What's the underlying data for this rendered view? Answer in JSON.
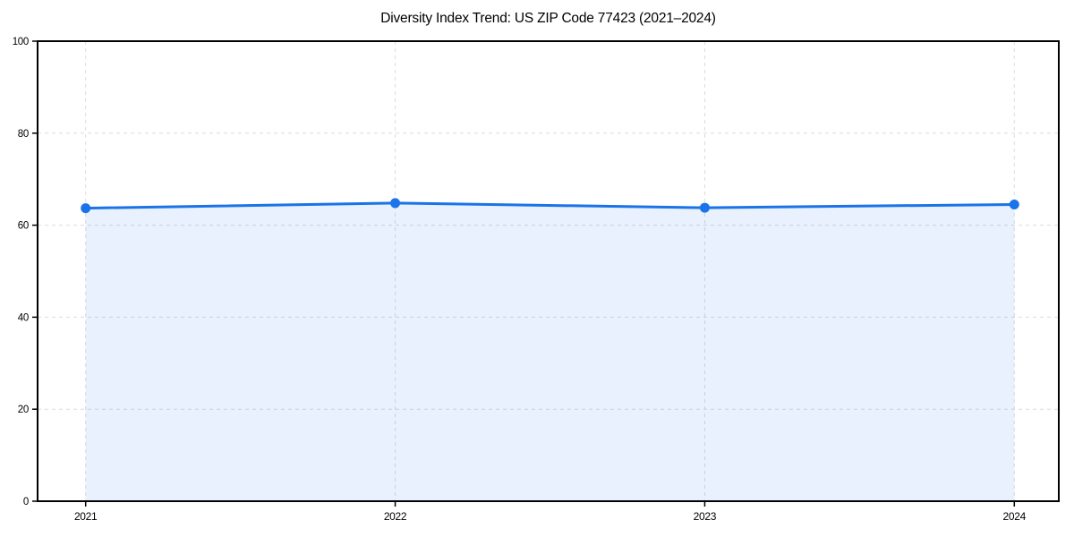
{
  "title": "Diversity Index Trend: US ZIP Code 77423 (2021–2024)",
  "chart_data": {
    "type": "area",
    "title": "Diversity Index Trend: US ZIP Code 77423 (2021–2024)",
    "categories": [
      "2021",
      "2022",
      "2023",
      "2024"
    ],
    "x": [
      2021,
      2022,
      2023,
      2024
    ],
    "series": [
      {
        "name": "Diversity Index",
        "values": [
          63.7,
          64.8,
          63.8,
          64.5
        ]
      }
    ],
    "xlabel": "",
    "ylabel": "",
    "ylim": [
      0,
      100
    ],
    "yticks": [
      0,
      20,
      40,
      60,
      80,
      100
    ],
    "grid": true,
    "grid_style": "dashed",
    "legend": "none",
    "colors": {
      "line": "#1a73e8",
      "marker": "#1a73e8",
      "fill": "rgba(26,115,232,0.10)",
      "grid": "#dcdcdc",
      "spine": "#000000",
      "background": "#ffffff",
      "tick_text": "#000000"
    }
  }
}
